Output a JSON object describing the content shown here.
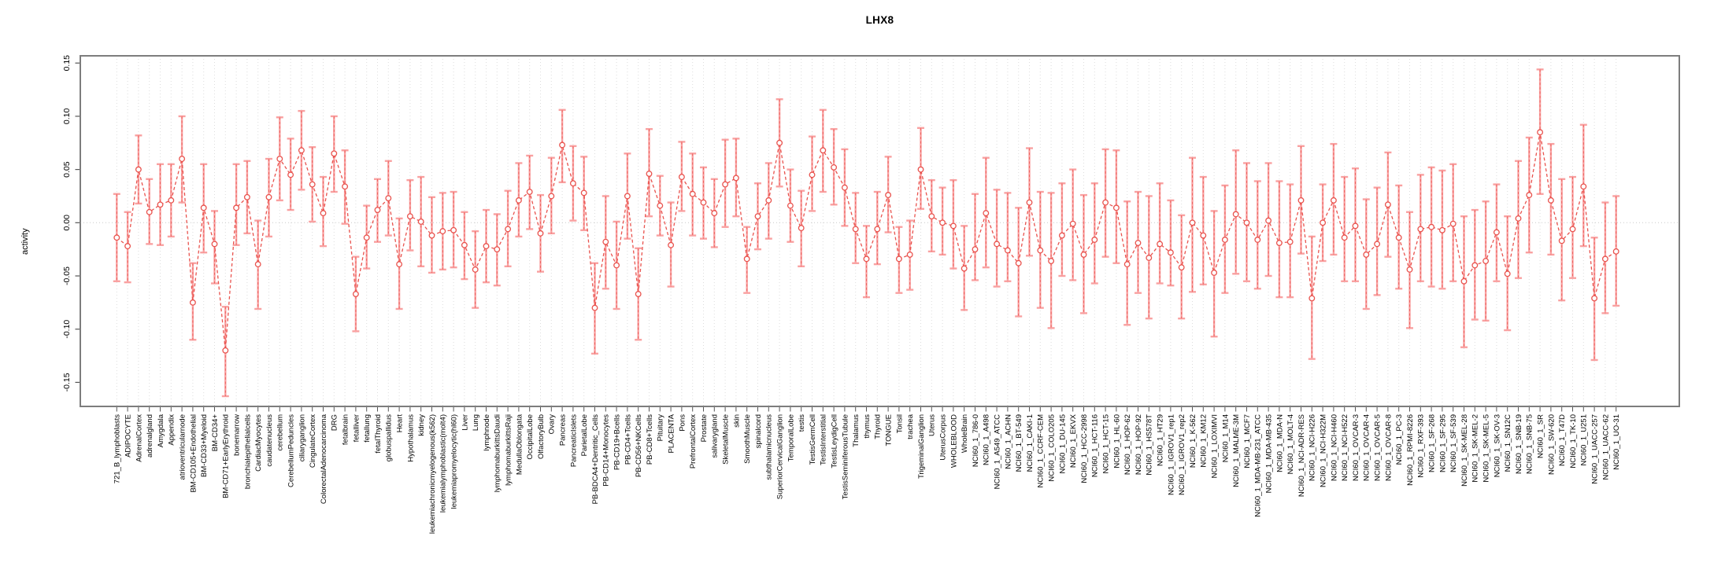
{
  "chart_data": {
    "type": "line",
    "subtype": "errorbar-series",
    "title": "LHX8",
    "xlabel": "",
    "ylabel": "activity",
    "legend": "none",
    "grid": "vertical dotted gridline per category, dotted horizontal line at 0",
    "ylim": [
      -0.1726,
      0.1568
    ],
    "yticks": [
      {
        "value": -0.15,
        "label": "-0.15"
      },
      {
        "value": -0.1,
        "label": "-0.10"
      },
      {
        "value": -0.05,
        "label": "-0.05"
      },
      {
        "value": 0.0,
        "label": "0.00"
      },
      {
        "value": 0.05,
        "label": "0.05"
      },
      {
        "value": 0.1,
        "label": "0.10"
      },
      {
        "value": 0.15,
        "label": "0.15"
      }
    ],
    "colors": {
      "point_line": "#e9534e",
      "error_bar": "#f9a1a1",
      "grid": "#dddddd",
      "zero_line": "#c8c8c8",
      "box": "#7d7d7d",
      "text": "#000000"
    },
    "categories": [
      "721_B_lymphoblasts",
      "ADIPOCYTE",
      "AdrenalCortex",
      "adrenalgland",
      "Amygdala",
      "Appendix",
      "atrioventricularnode",
      "BM-CD105+Endothelial",
      "BM-CD33+Myeloid",
      "BM-CD34+",
      "BM-CD71+EarlyErythroid",
      "bonemarrow",
      "bronchialepithelialcells",
      "CardiacMyocytes",
      "caudatenucleus",
      "cerebellum",
      "CerebellumPeduncles",
      "ciliaryganglion",
      "CingulateCortex",
      "ColorectalAdenocarcinoma",
      "DRG",
      "fetalbrain",
      "fetalliver",
      "fetallung",
      "fetalThyroid",
      "globuspallidus",
      "Heart",
      "Hypothalamus",
      "kidney",
      "leukemiachronicmyelogenous(k562)",
      "leukemialymphoblastic(molt4)",
      "leukemiapromyelocytic(hl60)",
      "Liver",
      "Lung",
      "lymphnode",
      "lymphomaburkittsDaudi",
      "lymphomaburkittsRaji",
      "MedullaOblongata",
      "OccipitalLobe",
      "OlfactoryBulb",
      "Ovary",
      "Pancreas",
      "PancreaticIslets",
      "ParietalLobe",
      "PB-BDCA4+Dentritic_Cells",
      "PB-CD14+Monocytes",
      "PB-CD19+Bcells",
      "PB-CD4+Tcells",
      "PB-CD56+NKCells",
      "PB-CD8+Tcells",
      "Pituitary",
      "PLACENTA",
      "Pons",
      "PrefrontalCortex",
      "Prostate",
      "salivarygland",
      "SkeletalMuscle",
      "skin",
      "SmoothMuscle",
      "spinalcord",
      "subthalamicnucleus",
      "SuperiorCervicalGanglion",
      "TemporalLobe",
      "testis",
      "TestisGermCell",
      "TestisInterstitial",
      "TestisLeydigCell",
      "TestisSeminiferousTubule",
      "Thalamus",
      "thymus",
      "Thyroid",
      "TONGUE",
      "Tonsil",
      "trachea",
      "TrigeminalGanglion",
      "Uterus",
      "UterusCorpus",
      "WHOLEBLOOD",
      "WholeBrain",
      "NCI60_1_786-0",
      "NCI60_1_A498",
      "NCI60_1_A549_ATCC",
      "NCI60_1_ACHN",
      "NCI60_1_BT-549",
      "NCI60_1_CAKI-1",
      "NCI60_1_CCRF-CEM",
      "NCI60_1_COLO205",
      "NCI60_1_DU-145",
      "NCI60_1_EKVX",
      "NCI60_1_HCC-2998",
      "NCI60_1_HCT-116",
      "NCI60_1_HCT-15",
      "NCI60_1_HL-60",
      "NCI60_1_HOP-62",
      "NCI60_1_HOP-92",
      "NCI60_1_HS578T",
      "NCI60_1_HT29",
      "NCI60_1_IGROV1_rep1",
      "NCI60_1_IGROV1_rep2",
      "NCI60_1_K-562",
      "NCI60_1_KM12",
      "NCI60_1_LOXIMVI",
      "NCI60_1_M14",
      "NCI60_1_MALME-3M",
      "NCI60_1_MCF7",
      "NCI60_1_MDA-MB-231_ATCC",
      "NCI60_1_MDA-MB-435",
      "NCI60_1_MDA-N",
      "NCI60_1_MOLT-4",
      "NCI60_1_NCI-ADR-RES",
      "NCI60_1_NCI-H226",
      "NCI60_1_NCI-H322M",
      "NCI60_1_NCI-H460",
      "NCI60_1_NCI-H522",
      "NCI60_1_OVCAR-3",
      "NCI60_1_OVCAR-4",
      "NCI60_1_OVCAR-5",
      "NCI60_1_OVCAR-8",
      "NCI60_1_PC-3",
      "NCI60_1_RPMI-8226",
      "NCI60_1_RXF-393",
      "NCI60_1_SF-268",
      "NCI60_1_SF-295",
      "NCI60_1_SF-539",
      "NCI60_1_SK-MEL-28",
      "NCI60_1_SK-MEL-2",
      "NCI60_1_SK-MEL-5",
      "NCI60_1_SK-OV-3",
      "NCI60_1_SN12C",
      "NCI60_1_SNB-19",
      "NCI60_1_SNB-75",
      "NCI60_1_SR",
      "NCI60_1_SW-620",
      "NCI60_1_T47D",
      "NCI60_1_TK-10",
      "NCI60_1_U251",
      "NCI60_1_UACC-257",
      "NCI60_1_UACC-62",
      "NCI60_1_UO-31"
    ],
    "values": [
      -0.014,
      -0.022,
      0.05,
      0.01,
      0.017,
      0.021,
      0.06,
      -0.075,
      0.014,
      -0.02,
      -0.12,
      0.014,
      0.024,
      -0.039,
      0.024,
      0.06,
      0.045,
      0.068,
      0.036,
      0.009,
      0.065,
      0.034,
      -0.067,
      -0.014,
      0.012,
      0.023,
      -0.039,
      0.006,
      0.001,
      -0.012,
      -0.008,
      -0.007,
      -0.021,
      -0.044,
      -0.022,
      -0.025,
      -0.006,
      0.021,
      0.029,
      -0.01,
      0.025,
      0.073,
      0.037,
      0.028,
      -0.08,
      -0.018,
      -0.04,
      0.025,
      -0.067,
      0.046,
      0.016,
      -0.021,
      0.043,
      0.027,
      0.019,
      0.009,
      0.036,
      0.042,
      -0.034,
      0.006,
      0.021,
      0.075,
      0.016,
      -0.005,
      0.045,
      0.068,
      0.052,
      0.033,
      -0.006,
      -0.034,
      -0.006,
      0.026,
      -0.034,
      -0.03,
      0.05,
      0.006,
      0.0,
      -0.003,
      -0.043,
      -0.025,
      0.009,
      -0.02,
      -0.026,
      -0.038,
      0.019,
      -0.026,
      -0.036,
      -0.012,
      -0.001,
      -0.03,
      -0.016,
      0.019,
      0.014,
      -0.039,
      -0.019,
      -0.033,
      -0.02,
      -0.028,
      -0.042,
      0.0,
      -0.012,
      -0.047,
      -0.016,
      0.008,
      0.0,
      -0.016,
      0.002,
      -0.019,
      -0.018,
      0.021,
      -0.071,
      0.0,
      0.021,
      -0.014,
      -0.003,
      -0.03,
      -0.02,
      0.017,
      -0.014,
      -0.044,
      -0.006,
      -0.004,
      -0.007,
      -0.001,
      -0.055,
      -0.04,
      -0.036,
      -0.009,
      -0.048,
      0.004,
      0.026,
      0.085,
      0.021,
      -0.017,
      -0.006,
      0.034,
      -0.071,
      -0.034,
      -0.027
    ],
    "upper": [
      0.027,
      0.01,
      0.082,
      0.041,
      0.055,
      0.055,
      0.1,
      -0.038,
      0.055,
      0.011,
      -0.079,
      0.055,
      0.058,
      0.002,
      0.06,
      0.099,
      0.079,
      0.105,
      0.071,
      0.043,
      0.1,
      0.068,
      -0.032,
      0.016,
      0.041,
      0.058,
      0.004,
      0.04,
      0.043,
      0.024,
      0.028,
      0.029,
      0.01,
      -0.008,
      0.012,
      0.008,
      0.03,
      0.056,
      0.063,
      0.026,
      0.061,
      0.106,
      0.072,
      0.062,
      -0.038,
      0.025,
      0.001,
      0.065,
      -0.024,
      0.088,
      0.044,
      0.019,
      0.076,
      0.065,
      0.052,
      0.041,
      0.078,
      0.079,
      -0.004,
      0.037,
      0.056,
      0.116,
      0.05,
      0.03,
      0.081,
      0.106,
      0.088,
      0.069,
      0.028,
      -0.003,
      0.029,
      0.062,
      -0.004,
      0.002,
      0.089,
      0.04,
      0.033,
      0.04,
      -0.003,
      0.027,
      0.061,
      0.031,
      0.028,
      0.014,
      0.07,
      0.029,
      0.028,
      0.037,
      0.05,
      0.026,
      0.037,
      0.069,
      0.068,
      0.02,
      0.029,
      0.025,
      0.037,
      0.021,
      0.007,
      0.061,
      0.043,
      0.011,
      0.035,
      0.068,
      0.056,
      0.039,
      0.056,
      0.039,
      0.036,
      0.072,
      -0.013,
      0.036,
      0.074,
      0.043,
      0.051,
      0.022,
      0.033,
      0.066,
      0.035,
      0.01,
      0.045,
      0.052,
      0.049,
      0.055,
      0.006,
      0.012,
      0.02,
      0.036,
      0.006,
      0.058,
      0.08,
      0.144,
      0.074,
      0.041,
      0.043,
      0.092,
      -0.014,
      0.019,
      0.025
    ],
    "lower": [
      -0.055,
      -0.056,
      0.018,
      -0.02,
      -0.021,
      -0.013,
      0.019,
      -0.11,
      -0.028,
      -0.057,
      -0.163,
      -0.021,
      -0.01,
      -0.081,
      -0.013,
      0.021,
      0.012,
      0.031,
      0.001,
      -0.022,
      0.029,
      -0.001,
      -0.102,
      -0.043,
      -0.018,
      -0.012,
      -0.081,
      -0.026,
      -0.041,
      -0.047,
      -0.044,
      -0.042,
      -0.053,
      -0.08,
      -0.056,
      -0.059,
      -0.041,
      -0.013,
      -0.006,
      -0.046,
      -0.01,
      0.038,
      0.002,
      -0.007,
      -0.123,
      -0.062,
      -0.081,
      -0.015,
      -0.11,
      0.006,
      -0.012,
      -0.06,
      0.011,
      -0.012,
      -0.015,
      -0.023,
      -0.004,
      0.006,
      -0.066,
      -0.025,
      -0.015,
      0.034,
      -0.018,
      -0.041,
      0.011,
      0.029,
      0.017,
      -0.003,
      -0.038,
      -0.07,
      -0.039,
      -0.009,
      -0.066,
      -0.063,
      0.013,
      -0.027,
      -0.03,
      -0.043,
      -0.082,
      -0.054,
      -0.042,
      -0.06,
      -0.055,
      -0.088,
      -0.031,
      -0.08,
      -0.099,
      -0.05,
      -0.054,
      -0.085,
      -0.057,
      -0.032,
      -0.038,
      -0.096,
      -0.066,
      -0.09,
      -0.057,
      -0.059,
      -0.09,
      -0.065,
      -0.058,
      -0.107,
      -0.066,
      -0.048,
      -0.055,
      -0.062,
      -0.05,
      -0.07,
      -0.07,
      -0.029,
      -0.128,
      -0.036,
      -0.03,
      -0.055,
      -0.055,
      -0.081,
      -0.068,
      -0.032,
      -0.062,
      -0.099,
      -0.055,
      -0.06,
      -0.062,
      -0.055,
      -0.117,
      -0.091,
      -0.092,
      -0.055,
      -0.101,
      -0.052,
      -0.028,
      0.027,
      -0.03,
      -0.073,
      -0.052,
      -0.022,
      -0.129,
      -0.085,
      -0.078
    ]
  }
}
